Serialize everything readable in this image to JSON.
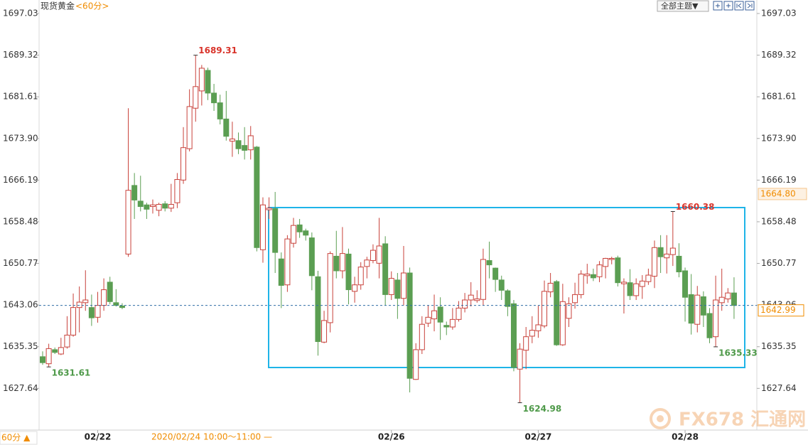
{
  "chart_data": {
    "type": "candlestick",
    "title": "现货黄金",
    "subtitle": "<60分>",
    "up_color": "#c8413a",
    "down_color": "#5b9e52",
    "ylim": [
      1619.92,
      1698.87
    ],
    "yticks": [
      1697.03,
      1689.32,
      1681.61,
      {
        "value": 1673.9,
        "label": "1673.90"
      },
      1666.19,
      1658.48,
      1650.77,
      1643.06,
      1635.35,
      1627.64
    ],
    "categories": [
      null,
      null,
      null,
      null,
      null,
      null,
      null,
      null,
      null,
      "02/22",
      null,
      null,
      null,
      null,
      null,
      null,
      null,
      null,
      null,
      null,
      null,
      null,
      null,
      null,
      null,
      null,
      null,
      null,
      null,
      null,
      null,
      null,
      null,
      null,
      null,
      null,
      null,
      null,
      null,
      null,
      null,
      null,
      null,
      null,
      null,
      null,
      null,
      null,
      null,
      null,
      null,
      null,
      null,
      null,
      null,
      null,
      null,
      "02/26",
      null,
      null,
      null,
      null,
      null,
      null,
      null,
      null,
      null,
      null,
      null,
      null,
      null,
      null,
      null,
      null,
      null,
      null,
      null,
      null,
      null,
      null,
      null,
      "02/27",
      null,
      null,
      null,
      null,
      null,
      null,
      null,
      null,
      null,
      null,
      null,
      null,
      null,
      null,
      null,
      null,
      null,
      null,
      null,
      null,
      null,
      null,
      null,
      "02/28",
      null,
      null,
      null,
      null,
      null,
      null,
      null,
      null
    ],
    "open": [
      1633.5,
      1632.2,
      1634.8,
      1634.0,
      1635.3,
      1637.5,
      1642.6,
      1643.5,
      1642.6,
      1640.8,
      1643.0,
      1647.3,
      1643.5,
      1642.9,
      1652.5,
      1665.2,
      1662.3,
      1661.6,
      1661.3,
      1660.6,
      1661.8,
      1661.0,
      1662.0,
      1666.2,
      1672.0,
      1679.5,
      1682.7,
      1686.5,
      1682.3,
      1680.5,
      1677.5,
      1673.4,
      1673.5,
      1672.6,
      1671.8,
      1672.3,
      1653.3,
      1660.7,
      1660.9,
      1651.6,
      1646.8,
      1654.5,
      1657.9,
      1656.8,
      1655.5,
      1648.3,
      1636.2,
      1639.8,
      1652.1,
      1649.4,
      1652.5,
      1645.6,
      1646.8,
      1650.2,
      1651.3,
      1650.8,
      1654.4,
      1645.0,
      1647.7,
      1644.3,
      1649.0,
      1629.3,
      1634.8,
      1639.7,
      1640.5,
      1642.7,
      1639.3,
      1639.0,
      1640.4,
      1642.5,
      1644.0,
      1643.9,
      1644.1,
      1651.3,
      1649.9,
      1647.7,
      1645.7,
      1643.3,
      1631.2,
      1634.7,
      1637.3,
      1638.3,
      1639.2,
      1645.5,
      1647.4,
      1635.7,
      1640.6,
      1643.5,
      1645.0,
      1648.5,
      1648.7,
      1648.3,
      1650.2,
      1651.5,
      1651.8,
      1647.0,
      1647.2,
      1644.8,
      1646.5,
      1647.4,
      1648.4,
      1653.7,
      1651.8,
      1652.4,
      1652.1,
      1649.4,
      1645.0,
      1639.5,
      1644.6,
      1641.5,
      1637.2,
      1643.5,
      1644.2,
      1645.3
    ],
    "high": [
      1634.5,
      1635.9,
      1635.2,
      1637.0,
      1641.0,
      1645.2,
      1646.5,
      1649.5,
      1645.0,
      1645.5,
      1648.0,
      1648.3,
      1646.0,
      1643.4,
      1679.5,
      1667.5,
      1667.0,
      1662.0,
      1662.6,
      1662.0,
      1662.3,
      1665.5,
      1667.5,
      1676.0,
      1683.0,
      1689.31,
      1687.5,
      1687.0,
      1684.0,
      1682.0,
      1682.7,
      1677.0,
      1675.0,
      1676.0,
      1676.2,
      1672.5,
      1663.0,
      1663.0,
      1664.0,
      1652.8,
      1656.0,
      1659.2,
      1659.0,
      1657.2,
      1656.5,
      1649.4,
      1642.0,
      1653.0,
      1656.8,
      1657.5,
      1653.5,
      1648.3,
      1651.0,
      1652.0,
      1654.3,
      1659.2,
      1655.8,
      1649.3,
      1649.0,
      1654.0,
      1650.0,
      1636.0,
      1641.0,
      1643.0,
      1645.0,
      1644.5,
      1640.0,
      1642.5,
      1643.8,
      1645.3,
      1647.3,
      1645.8,
      1653.5,
      1654.8,
      1650.0,
      1648.5,
      1646.0,
      1644.0,
      1636.0,
      1639.0,
      1641.0,
      1643.0,
      1647.6,
      1649.0,
      1647.7,
      1647.0,
      1644.5,
      1647.2,
      1649.5,
      1650.7,
      1649.8,
      1651.2,
      1651.8,
      1652.0,
      1652.2,
      1648.0,
      1649.7,
      1648.0,
      1648.6,
      1649.8,
      1655.0,
      1656.0,
      1656.0,
      1660.38,
      1654.5,
      1650.0,
      1648.8,
      1646.6,
      1645.6,
      1642.5,
      1648.5,
      1649.8,
      1646.2,
      1648.2
    ],
    "low": [
      1632.0,
      1631.61,
      1634.0,
      1633.8,
      1635.0,
      1637.2,
      1638.0,
      1642.0,
      1639.2,
      1639.8,
      1642.0,
      1643.2,
      1642.8,
      1642.3,
      1652.0,
      1659.0,
      1660.4,
      1659.0,
      1660.0,
      1659.5,
      1660.4,
      1660.3,
      1661.0,
      1665.5,
      1671.5,
      1677.0,
      1680.0,
      1681.0,
      1679.0,
      1676.5,
      1673.5,
      1670.5,
      1671.0,
      1670.0,
      1670.0,
      1653.0,
      1650.9,
      1659.0,
      1649.0,
      1642.5,
      1645.5,
      1653.7,
      1655.5,
      1655.0,
      1645.8,
      1633.7,
      1636.0,
      1638.0,
      1648.0,
      1648.0,
      1643.2,
      1643.5,
      1645.9,
      1648.0,
      1650.8,
      1648.0,
      1643.0,
      1644.0,
      1640.5,
      1643.0,
      1626.9,
      1629.2,
      1634.0,
      1639.0,
      1638.2,
      1636.6,
      1637.5,
      1638.5,
      1640.0,
      1641.7,
      1642.8,
      1643.5,
      1643.0,
      1648.0,
      1645.5,
      1644.0,
      1641.0,
      1630.8,
      1624.98,
      1631.2,
      1636.0,
      1637.0,
      1638.8,
      1644.5,
      1635.5,
      1635.5,
      1639.0,
      1642.4,
      1644.3,
      1647.0,
      1647.5,
      1647.3,
      1648.0,
      1650.6,
      1646.5,
      1641.5,
      1644.0,
      1644.0,
      1644.2,
      1646.8,
      1646.2,
      1649.0,
      1648.9,
      1650.3,
      1648.2,
      1640.0,
      1637.6,
      1638.0,
      1639.0,
      1636.0,
      1635.33,
      1642.0,
      1643.5,
      1640.5
    ],
    "close": [
      1632.4,
      1635.0,
      1634.3,
      1635.2,
      1637.5,
      1642.6,
      1643.6,
      1644.0,
      1640.7,
      1643.0,
      1645.9,
      1643.7,
      1643.0,
      1642.6,
      1664.3,
      1662.5,
      1661.3,
      1660.8,
      1661.6,
      1661.7,
      1661.0,
      1661.7,
      1666.3,
      1672.2,
      1679.8,
      1683.5,
      1686.9,
      1682.3,
      1680.5,
      1677.5,
      1674.3,
      1673.8,
      1672.0,
      1671.7,
      1674.4,
      1653.7,
      1661.6,
      1661.0,
      1652.8,
      1646.7,
      1655.3,
      1657.8,
      1656.6,
      1656.0,
      1648.5,
      1636.3,
      1640.2,
      1652.6,
      1649.4,
      1652.6,
      1645.9,
      1646.8,
      1650.1,
      1651.4,
      1653.2,
      1654.0,
      1645.0,
      1648.0,
      1644.3,
      1649.0,
      1629.5,
      1634.8,
      1639.5,
      1640.8,
      1642.0,
      1639.9,
      1639.0,
      1640.4,
      1642.5,
      1644.0,
      1644.9,
      1644.2,
      1651.5,
      1650.5,
      1647.8,
      1645.8,
      1642.8,
      1631.5,
      1634.9,
      1637.2,
      1638.4,
      1639.4,
      1645.6,
      1647.1,
      1635.7,
      1643.7,
      1643.3,
      1645.0,
      1648.8,
      1648.8,
      1648.1,
      1650.5,
      1651.7,
      1651.7,
      1647.2,
      1647.3,
      1644.8,
      1647.0,
      1647.5,
      1648.6,
      1653.7,
      1652.0,
      1652.5,
      1653.6,
      1649.2,
      1644.5,
      1639.7,
      1644.9,
      1641.2,
      1637.0,
      1644.0,
      1644.5,
      1645.3,
      1642.99
    ],
    "crosshair": {
      "time": "2020/02/24 10:00～11:00 —",
      "price": {
        "value": 1664.8,
        "label": "1664.80"
      }
    }
  },
  "ui": {
    "theme_button": "全部主题▼",
    "period_button": "60分 ▲",
    "watermark": "FX678 汇通网"
  }
}
